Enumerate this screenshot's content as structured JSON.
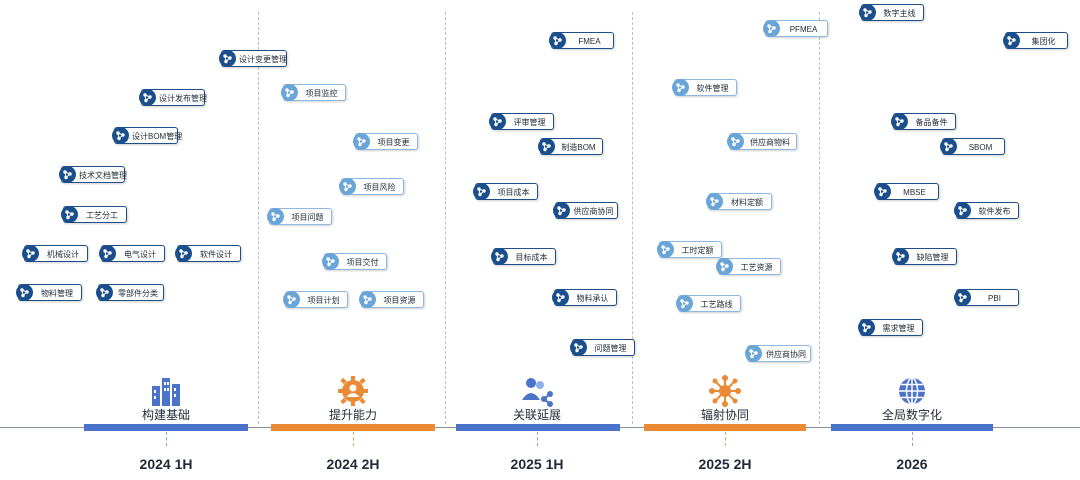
{
  "phases": [
    {
      "name": "构建基础",
      "period": "2024 1H",
      "color": "#4a73c9"
    },
    {
      "name": "提升能力",
      "period": "2024 2H",
      "color": "#eb8a34"
    },
    {
      "name": "关联延展",
      "period": "2025 1H",
      "color": "#4a73c9"
    },
    {
      "name": "辐射协同",
      "period": "2025 2H",
      "color": "#eb8a34"
    },
    {
      "name": "全局数字化",
      "period": "2026",
      "color": "#4a73c9"
    }
  ],
  "items": [
    {
      "label": "设计变更管理",
      "style": "dark"
    },
    {
      "label": "设计发布管理",
      "style": "dark"
    },
    {
      "label": "设计BOM管理",
      "style": "dark"
    },
    {
      "label": "技术文档管理",
      "style": "dark"
    },
    {
      "label": "工艺分工",
      "style": "dark"
    },
    {
      "label": "机械设计",
      "style": "dark"
    },
    {
      "label": "电气设计",
      "style": "dark"
    },
    {
      "label": "软件设计",
      "style": "dark"
    },
    {
      "label": "物料管理",
      "style": "dark"
    },
    {
      "label": "零部件分类",
      "style": "dark"
    },
    {
      "label": "项目监控",
      "style": "light"
    },
    {
      "label": "项目变更",
      "style": "light"
    },
    {
      "label": "项目风险",
      "style": "light"
    },
    {
      "label": "项目问题",
      "style": "light"
    },
    {
      "label": "项目交付",
      "style": "light"
    },
    {
      "label": "项目计划",
      "style": "light"
    },
    {
      "label": "项目资源",
      "style": "light"
    },
    {
      "label": "FMEA",
      "style": "dark"
    },
    {
      "label": "评审管理",
      "style": "dark"
    },
    {
      "label": "制造BOM",
      "style": "dark"
    },
    {
      "label": "项目成本",
      "style": "dark"
    },
    {
      "label": "供应商协同",
      "style": "dark"
    },
    {
      "label": "目标成本",
      "style": "dark"
    },
    {
      "label": "物料承认",
      "style": "dark"
    },
    {
      "label": "问题管理",
      "style": "dark"
    },
    {
      "label": "PFMEA",
      "style": "light"
    },
    {
      "label": "软件管理",
      "style": "light"
    },
    {
      "label": "供应商物料",
      "style": "light"
    },
    {
      "label": "材料定额",
      "style": "light"
    },
    {
      "label": "工时定额",
      "style": "light"
    },
    {
      "label": "工艺资源",
      "style": "light"
    },
    {
      "label": "工艺路线",
      "style": "light"
    },
    {
      "label": "供应商协同",
      "style": "light"
    },
    {
      "label": "数字主线",
      "style": "dark"
    },
    {
      "label": "集团化",
      "style": "dark"
    },
    {
      "label": "备品备件",
      "style": "dark"
    },
    {
      "label": "SBOM",
      "style": "dark"
    },
    {
      "label": "MBSE",
      "style": "dark"
    },
    {
      "label": "软件发布",
      "style": "dark"
    },
    {
      "label": "缺陷管理",
      "style": "dark"
    },
    {
      "label": "PBI",
      "style": "dark"
    },
    {
      "label": "需求管理",
      "style": "dark"
    }
  ]
}
